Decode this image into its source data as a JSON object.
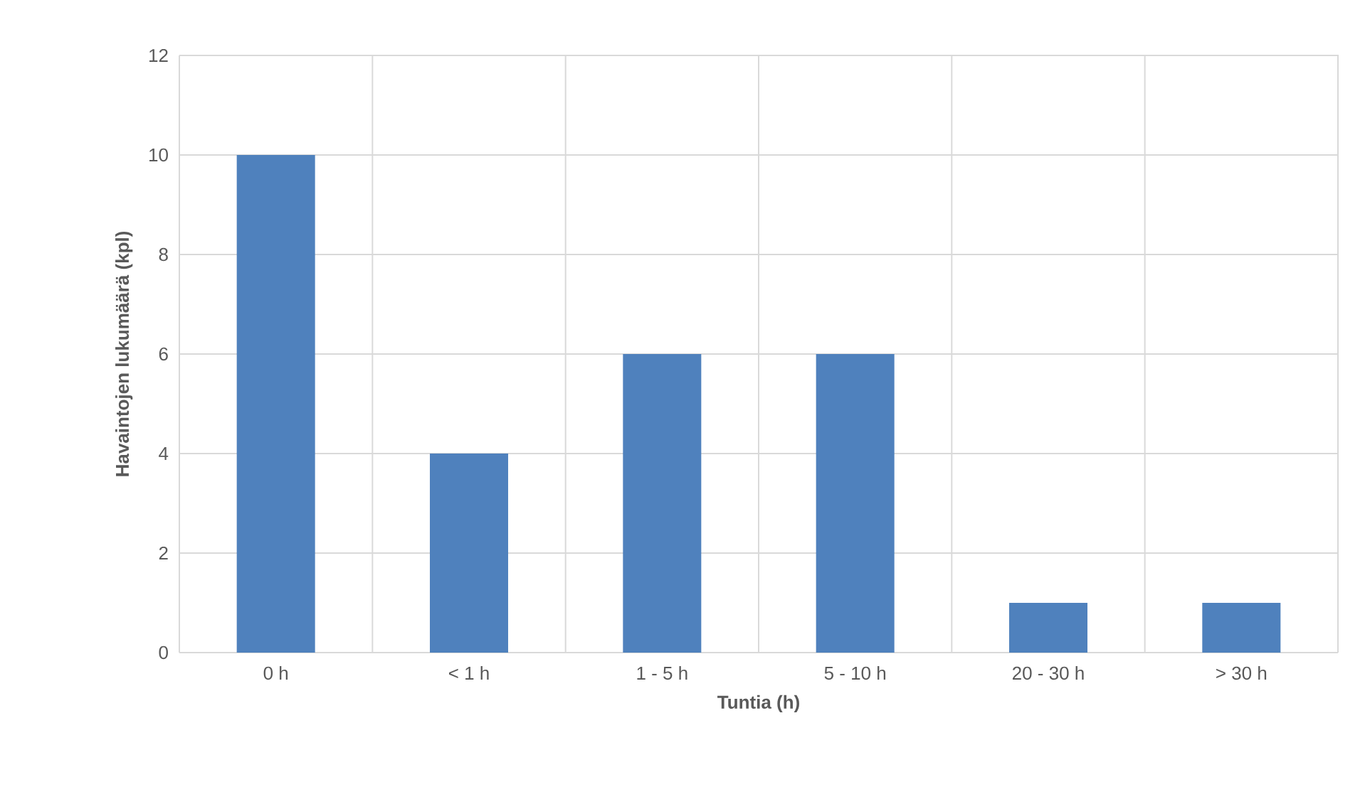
{
  "chart_data": {
    "type": "bar",
    "xlabel": "Tuntia (h)",
    "ylabel": "Havaintojen lukumäärä (kpl)",
    "categories": [
      "0 h",
      "< 1 h",
      "1 - 5 h",
      "5 - 10 h",
      "20 - 30 h",
      "> 30 h"
    ],
    "values": [
      10,
      4,
      6,
      6,
      1,
      1
    ],
    "color": "#4f81bd",
    "ylim": [
      0,
      12
    ],
    "yticks": [
      0,
      2,
      4,
      6,
      8,
      10,
      12
    ],
    "grid": true
  }
}
